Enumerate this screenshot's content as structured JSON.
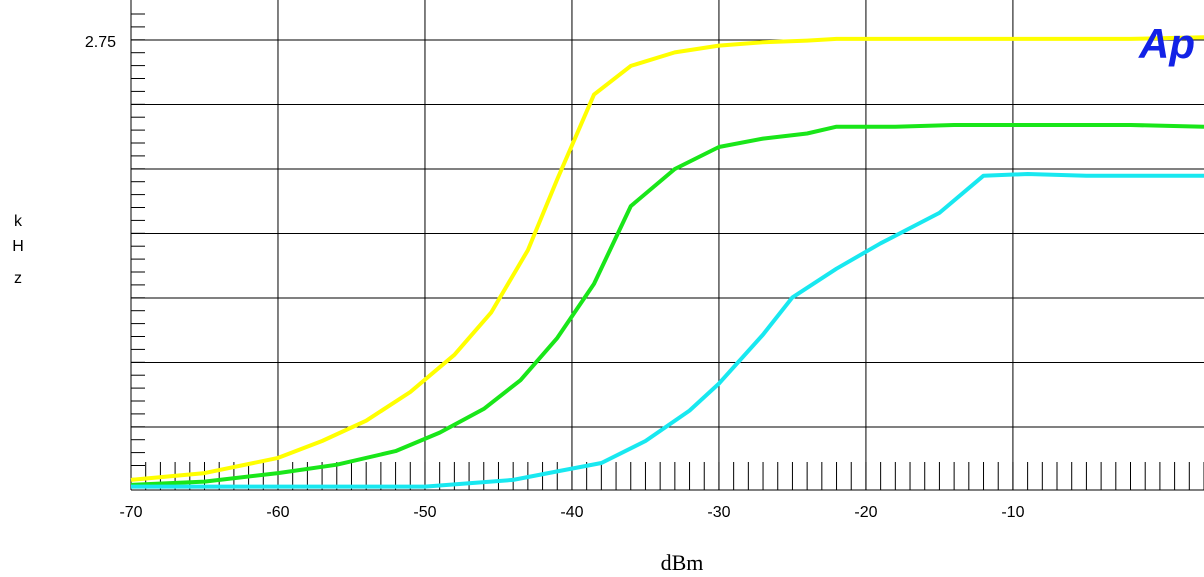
{
  "chart_data": {
    "type": "line",
    "title": "",
    "xlabel": "dBm",
    "ylabel_letters": [
      "k",
      "H",
      "z"
    ],
    "xlim": [
      -70,
      3
    ],
    "ylim": [
      0,
      2.9
    ],
    "x_ticks": [
      -70,
      -60,
      -50,
      -40,
      -30,
      -20,
      -10
    ],
    "x_tick_labels": [
      "-70",
      "-60",
      "-50",
      "-40",
      "-30",
      "-20",
      "-10"
    ],
    "y_tick_label": "2.75",
    "y_tick_value": 2.75,
    "grid": true,
    "logo_text": "Ap",
    "series": [
      {
        "color": "#ffff00",
        "x": [
          -70,
          -65,
          -60,
          -57,
          -54,
          -51,
          -48,
          -45.5,
          -43,
          -41,
          -38.5,
          -36,
          -33,
          -30,
          -27,
          -24,
          -22,
          -18,
          -14,
          -10,
          -6,
          -2,
          3
        ],
        "y": [
          0.06,
          0.1,
          0.19,
          0.29,
          0.41,
          0.58,
          0.8,
          1.05,
          1.42,
          1.84,
          2.34,
          2.51,
          2.59,
          2.63,
          2.65,
          2.66,
          2.67,
          2.67,
          2.67,
          2.67,
          2.67,
          2.67,
          2.68
        ]
      },
      {
        "color": "#19e619",
        "x": [
          -70,
          -65,
          -60,
          -56,
          -52,
          -49,
          -46,
          -43.5,
          -41,
          -38.5,
          -36,
          -33,
          -30,
          -27,
          -24,
          -22,
          -18,
          -14,
          -10,
          -6,
          -2,
          3
        ],
        "y": [
          0.03,
          0.05,
          0.1,
          0.15,
          0.23,
          0.34,
          0.48,
          0.65,
          0.9,
          1.22,
          1.68,
          1.9,
          2.03,
          2.08,
          2.11,
          2.15,
          2.15,
          2.16,
          2.16,
          2.16,
          2.16,
          2.15
        ]
      },
      {
        "color": "#18e8f0",
        "x": [
          -70,
          -65,
          -60,
          -55,
          -50,
          -47,
          -44,
          -41,
          -38,
          -35,
          -32,
          -30,
          -27,
          -25,
          -22,
          -19,
          -15,
          -12,
          -9,
          -5,
          3
        ],
        "y": [
          0.02,
          0.02,
          0.02,
          0.02,
          0.02,
          0.04,
          0.06,
          0.11,
          0.16,
          0.29,
          0.47,
          0.63,
          0.92,
          1.14,
          1.31,
          1.46,
          1.64,
          1.86,
          1.87,
          1.86,
          1.86
        ]
      }
    ]
  }
}
